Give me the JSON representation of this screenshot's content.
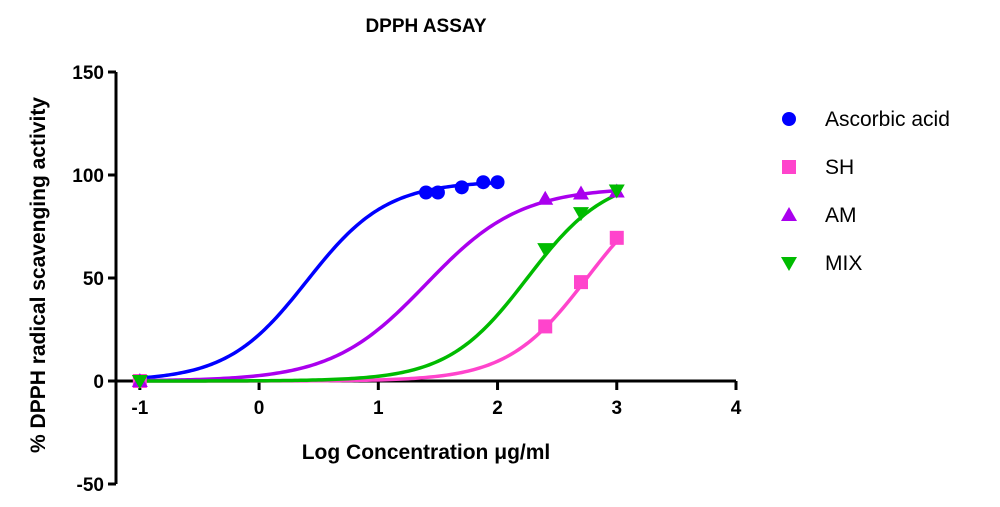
{
  "chart_data": {
    "type": "scatter",
    "title": "DPPH ASSAY",
    "xlabel": "Log Concentration μg/ml",
    "ylabel": "% DPPH radical scavenging activity",
    "xlim": [
      -1.2,
      4
    ],
    "ylim": [
      -50,
      150
    ],
    "xticks": [
      -1,
      0,
      1,
      2,
      3,
      4
    ],
    "yticks": [
      -50,
      0,
      50,
      100,
      150
    ],
    "grid": false,
    "legend_position": "right",
    "series": [
      {
        "name": "Ascorbic acid",
        "color": "#0000ff",
        "marker": "circle",
        "points": [
          [
            -1,
            0
          ],
          [
            1.4,
            91.5
          ],
          [
            1.5,
            91.5
          ],
          [
            1.7,
            94
          ],
          [
            1.88,
            96.5
          ],
          [
            2.0,
            96.5
          ]
        ],
        "curve_start": -1,
        "curve_end": 2,
        "fit": {
          "top": 97,
          "log_ec50": 0.4,
          "hill_slope": 1.3
        }
      },
      {
        "name": "SH",
        "color": "#ff44cc",
        "marker": "square",
        "points": [
          [
            -1,
            0
          ],
          [
            2.4,
            26.5
          ],
          [
            2.7,
            48
          ],
          [
            3.0,
            69.5
          ]
        ],
        "curve_start": -1,
        "curve_end": 3,
        "fit": {
          "top": 100,
          "log_ec50": 2.75,
          "hill_slope": 1.3
        }
      },
      {
        "name": "AM",
        "color": "#aa00ee",
        "marker": "triangle-up",
        "points": [
          [
            -1,
            0
          ],
          [
            2.4,
            88.5
          ],
          [
            2.7,
            91
          ],
          [
            3.0,
            92
          ]
        ],
        "curve_start": -1,
        "curve_end": 3,
        "fit": {
          "top": 94,
          "log_ec50": 1.4,
          "hill_slope": 1.1
        }
      },
      {
        "name": "MIX",
        "color": "#00bb00",
        "marker": "triangle-down",
        "points": [
          [
            -1,
            0
          ],
          [
            2.4,
            64
          ],
          [
            2.7,
            81.5
          ],
          [
            3.0,
            92.5
          ]
        ],
        "curve_start": -1,
        "curve_end": 3,
        "fit": {
          "top": 100,
          "log_ec50": 2.25,
          "hill_slope": 1.3
        }
      }
    ]
  }
}
